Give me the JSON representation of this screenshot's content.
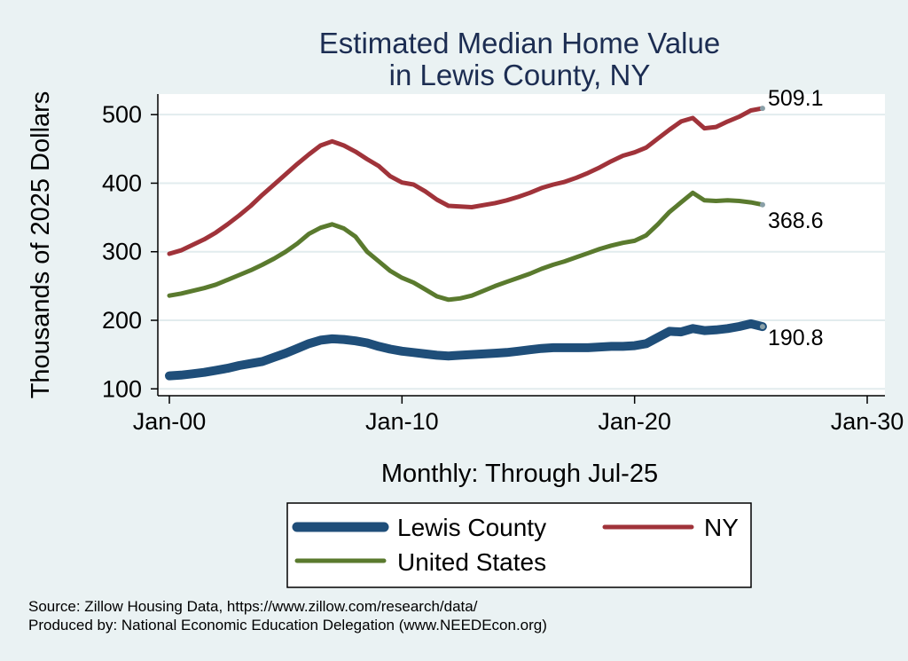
{
  "chart_data": {
    "type": "line",
    "title": [
      "Estimated Median Home Value",
      "in Lewis County, NY"
    ],
    "xlabel": "Monthly: Through Jul-25",
    "ylabel": "Thousands of 2025 Dollars",
    "xlim": [
      2000,
      2030
    ],
    "ylim": [
      90,
      530
    ],
    "x_ticks": [
      {
        "value": 2000,
        "label": "Jan-00"
      },
      {
        "value": 2010,
        "label": "Jan-10"
      },
      {
        "value": 2020,
        "label": "Jan-20"
      },
      {
        "value": 2030,
        "label": "Jan-30"
      }
    ],
    "y_ticks": [
      100,
      200,
      300,
      400,
      500
    ],
    "grid": true,
    "legend_position": "bottom",
    "series": [
      {
        "name": "Lewis County",
        "color": "#1f4e79",
        "end_label": "190.8",
        "points": [
          [
            2000.0,
            119
          ],
          [
            2000.5,
            120
          ],
          [
            2001.0,
            122
          ],
          [
            2001.5,
            124
          ],
          [
            2002.0,
            127
          ],
          [
            2002.5,
            130
          ],
          [
            2003.0,
            134
          ],
          [
            2003.5,
            137
          ],
          [
            2004.0,
            140
          ],
          [
            2004.5,
            146
          ],
          [
            2005.0,
            152
          ],
          [
            2005.5,
            159
          ],
          [
            2006.0,
            166
          ],
          [
            2006.5,
            171
          ],
          [
            2007.0,
            173
          ],
          [
            2007.5,
            172
          ],
          [
            2008.0,
            170
          ],
          [
            2008.5,
            167
          ],
          [
            2009.0,
            162
          ],
          [
            2009.5,
            158
          ],
          [
            2010.0,
            155
          ],
          [
            2010.5,
            153
          ],
          [
            2011.0,
            151
          ],
          [
            2011.5,
            149
          ],
          [
            2012.0,
            148
          ],
          [
            2012.5,
            149
          ],
          [
            2013.0,
            150
          ],
          [
            2013.5,
            151
          ],
          [
            2014.0,
            152
          ],
          [
            2014.5,
            153
          ],
          [
            2015.0,
            155
          ],
          [
            2015.5,
            157
          ],
          [
            2016.0,
            159
          ],
          [
            2016.5,
            160
          ],
          [
            2017.0,
            160
          ],
          [
            2017.5,
            160
          ],
          [
            2018.0,
            160
          ],
          [
            2018.5,
            161
          ],
          [
            2019.0,
            162
          ],
          [
            2019.5,
            162
          ],
          [
            2020.0,
            163
          ],
          [
            2020.5,
            166
          ],
          [
            2021.0,
            175
          ],
          [
            2021.5,
            184
          ],
          [
            2022.0,
            183
          ],
          [
            2022.5,
            188
          ],
          [
            2023.0,
            185
          ],
          [
            2023.5,
            186
          ],
          [
            2024.0,
            188
          ],
          [
            2024.5,
            191
          ],
          [
            2025.0,
            195
          ],
          [
            2025.5,
            190.8
          ]
        ]
      },
      {
        "name": "NY",
        "color": "#a0333a",
        "end_label": "509.1",
        "points": [
          [
            2000.0,
            297
          ],
          [
            2000.5,
            302
          ],
          [
            2001.0,
            310
          ],
          [
            2001.5,
            318
          ],
          [
            2002.0,
            328
          ],
          [
            2002.5,
            340
          ],
          [
            2003.0,
            353
          ],
          [
            2003.5,
            367
          ],
          [
            2004.0,
            383
          ],
          [
            2004.5,
            398
          ],
          [
            2005.0,
            413
          ],
          [
            2005.5,
            428
          ],
          [
            2006.0,
            442
          ],
          [
            2006.5,
            455
          ],
          [
            2007.0,
            461
          ],
          [
            2007.5,
            455
          ],
          [
            2008.0,
            446
          ],
          [
            2008.5,
            435
          ],
          [
            2009.0,
            425
          ],
          [
            2009.5,
            410
          ],
          [
            2010.0,
            401
          ],
          [
            2010.5,
            398
          ],
          [
            2011.0,
            388
          ],
          [
            2011.5,
            376
          ],
          [
            2012.0,
            367
          ],
          [
            2012.5,
            366
          ],
          [
            2013.0,
            365
          ],
          [
            2013.5,
            368
          ],
          [
            2014.0,
            371
          ],
          [
            2014.5,
            375
          ],
          [
            2015.0,
            380
          ],
          [
            2015.5,
            386
          ],
          [
            2016.0,
            393
          ],
          [
            2016.5,
            398
          ],
          [
            2017.0,
            402
          ],
          [
            2017.5,
            408
          ],
          [
            2018.0,
            415
          ],
          [
            2018.5,
            423
          ],
          [
            2019.0,
            432
          ],
          [
            2019.5,
            440
          ],
          [
            2020.0,
            445
          ],
          [
            2020.5,
            452
          ],
          [
            2021.0,
            465
          ],
          [
            2021.5,
            478
          ],
          [
            2022.0,
            490
          ],
          [
            2022.5,
            495
          ],
          [
            2023.0,
            480
          ],
          [
            2023.5,
            482
          ],
          [
            2024.0,
            490
          ],
          [
            2024.5,
            497
          ],
          [
            2025.0,
            506
          ],
          [
            2025.5,
            509.1
          ]
        ]
      },
      {
        "name": "United States",
        "color": "#5a7a2e",
        "end_label": "368.6",
        "points": [
          [
            2000.0,
            236
          ],
          [
            2000.5,
            239
          ],
          [
            2001.0,
            243
          ],
          [
            2001.5,
            247
          ],
          [
            2002.0,
            252
          ],
          [
            2002.5,
            259
          ],
          [
            2003.0,
            266
          ],
          [
            2003.5,
            273
          ],
          [
            2004.0,
            281
          ],
          [
            2004.5,
            290
          ],
          [
            2005.0,
            300
          ],
          [
            2005.5,
            312
          ],
          [
            2006.0,
            326
          ],
          [
            2006.5,
            335
          ],
          [
            2007.0,
            340
          ],
          [
            2007.5,
            334
          ],
          [
            2008.0,
            322
          ],
          [
            2008.5,
            300
          ],
          [
            2009.0,
            286
          ],
          [
            2009.5,
            272
          ],
          [
            2010.0,
            262
          ],
          [
            2010.5,
            255
          ],
          [
            2011.0,
            245
          ],
          [
            2011.5,
            235
          ],
          [
            2012.0,
            230
          ],
          [
            2012.5,
            232
          ],
          [
            2013.0,
            236
          ],
          [
            2013.5,
            243
          ],
          [
            2014.0,
            250
          ],
          [
            2014.5,
            256
          ],
          [
            2015.0,
            262
          ],
          [
            2015.5,
            268
          ],
          [
            2016.0,
            275
          ],
          [
            2016.5,
            281
          ],
          [
            2017.0,
            286
          ],
          [
            2017.5,
            292
          ],
          [
            2018.0,
            298
          ],
          [
            2018.5,
            304
          ],
          [
            2019.0,
            309
          ],
          [
            2019.5,
            313
          ],
          [
            2020.0,
            316
          ],
          [
            2020.5,
            324
          ],
          [
            2021.0,
            340
          ],
          [
            2021.5,
            358
          ],
          [
            2022.0,
            372
          ],
          [
            2022.5,
            386
          ],
          [
            2023.0,
            375
          ],
          [
            2023.5,
            374
          ],
          [
            2024.0,
            375
          ],
          [
            2024.5,
            374
          ],
          [
            2025.0,
            372
          ],
          [
            2025.5,
            368.6
          ]
        ]
      }
    ]
  },
  "legend": {
    "items": [
      {
        "label": "Lewis County",
        "color": "#1f4e79"
      },
      {
        "label": "NY",
        "color": "#a0333a"
      },
      {
        "label": "United States",
        "color": "#5a7a2e"
      }
    ]
  },
  "source": {
    "line1": "Source: Zillow Housing Data, https://www.zillow.com/research/data/",
    "line2": "Produced by: National Economic Education Delegation (www.NEEDEcon.org)"
  }
}
